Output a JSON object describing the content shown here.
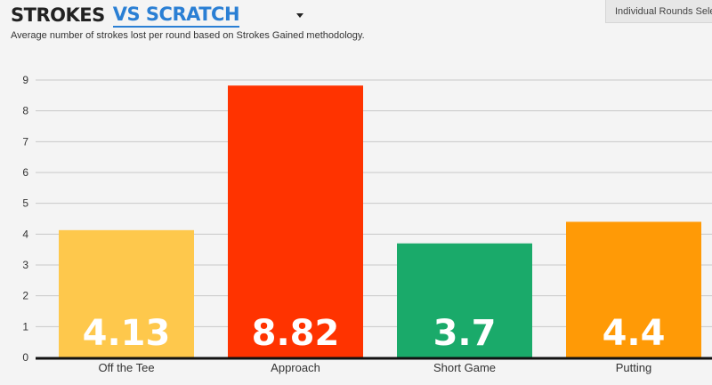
{
  "header": {
    "title": "STROKES",
    "vs_link": "VS SCRATCH",
    "subtitle": "Average number of strokes lost per round based on Strokes Gained methodology.",
    "rounds_button": "Individual Rounds Select"
  },
  "icons": {
    "dropdown": "caret-down-icon"
  },
  "chart_data": {
    "type": "bar",
    "title": "STROKES VS SCRATCH",
    "categories": [
      "Off the Tee",
      "Approach",
      "Short Game",
      "Putting"
    ],
    "values": [
      4.13,
      8.82,
      3.7,
      4.4
    ],
    "value_labels": [
      "4.13",
      "8.82",
      "3.7",
      "4.4"
    ],
    "colors": [
      "#fec84c",
      "#ff3300",
      "#1aaa6a",
      "#ff9a06"
    ],
    "ylim": [
      0,
      9
    ],
    "yticks": [
      "0",
      "1",
      "2",
      "3",
      "4",
      "5",
      "6",
      "7",
      "8",
      "9"
    ],
    "grid": true
  }
}
